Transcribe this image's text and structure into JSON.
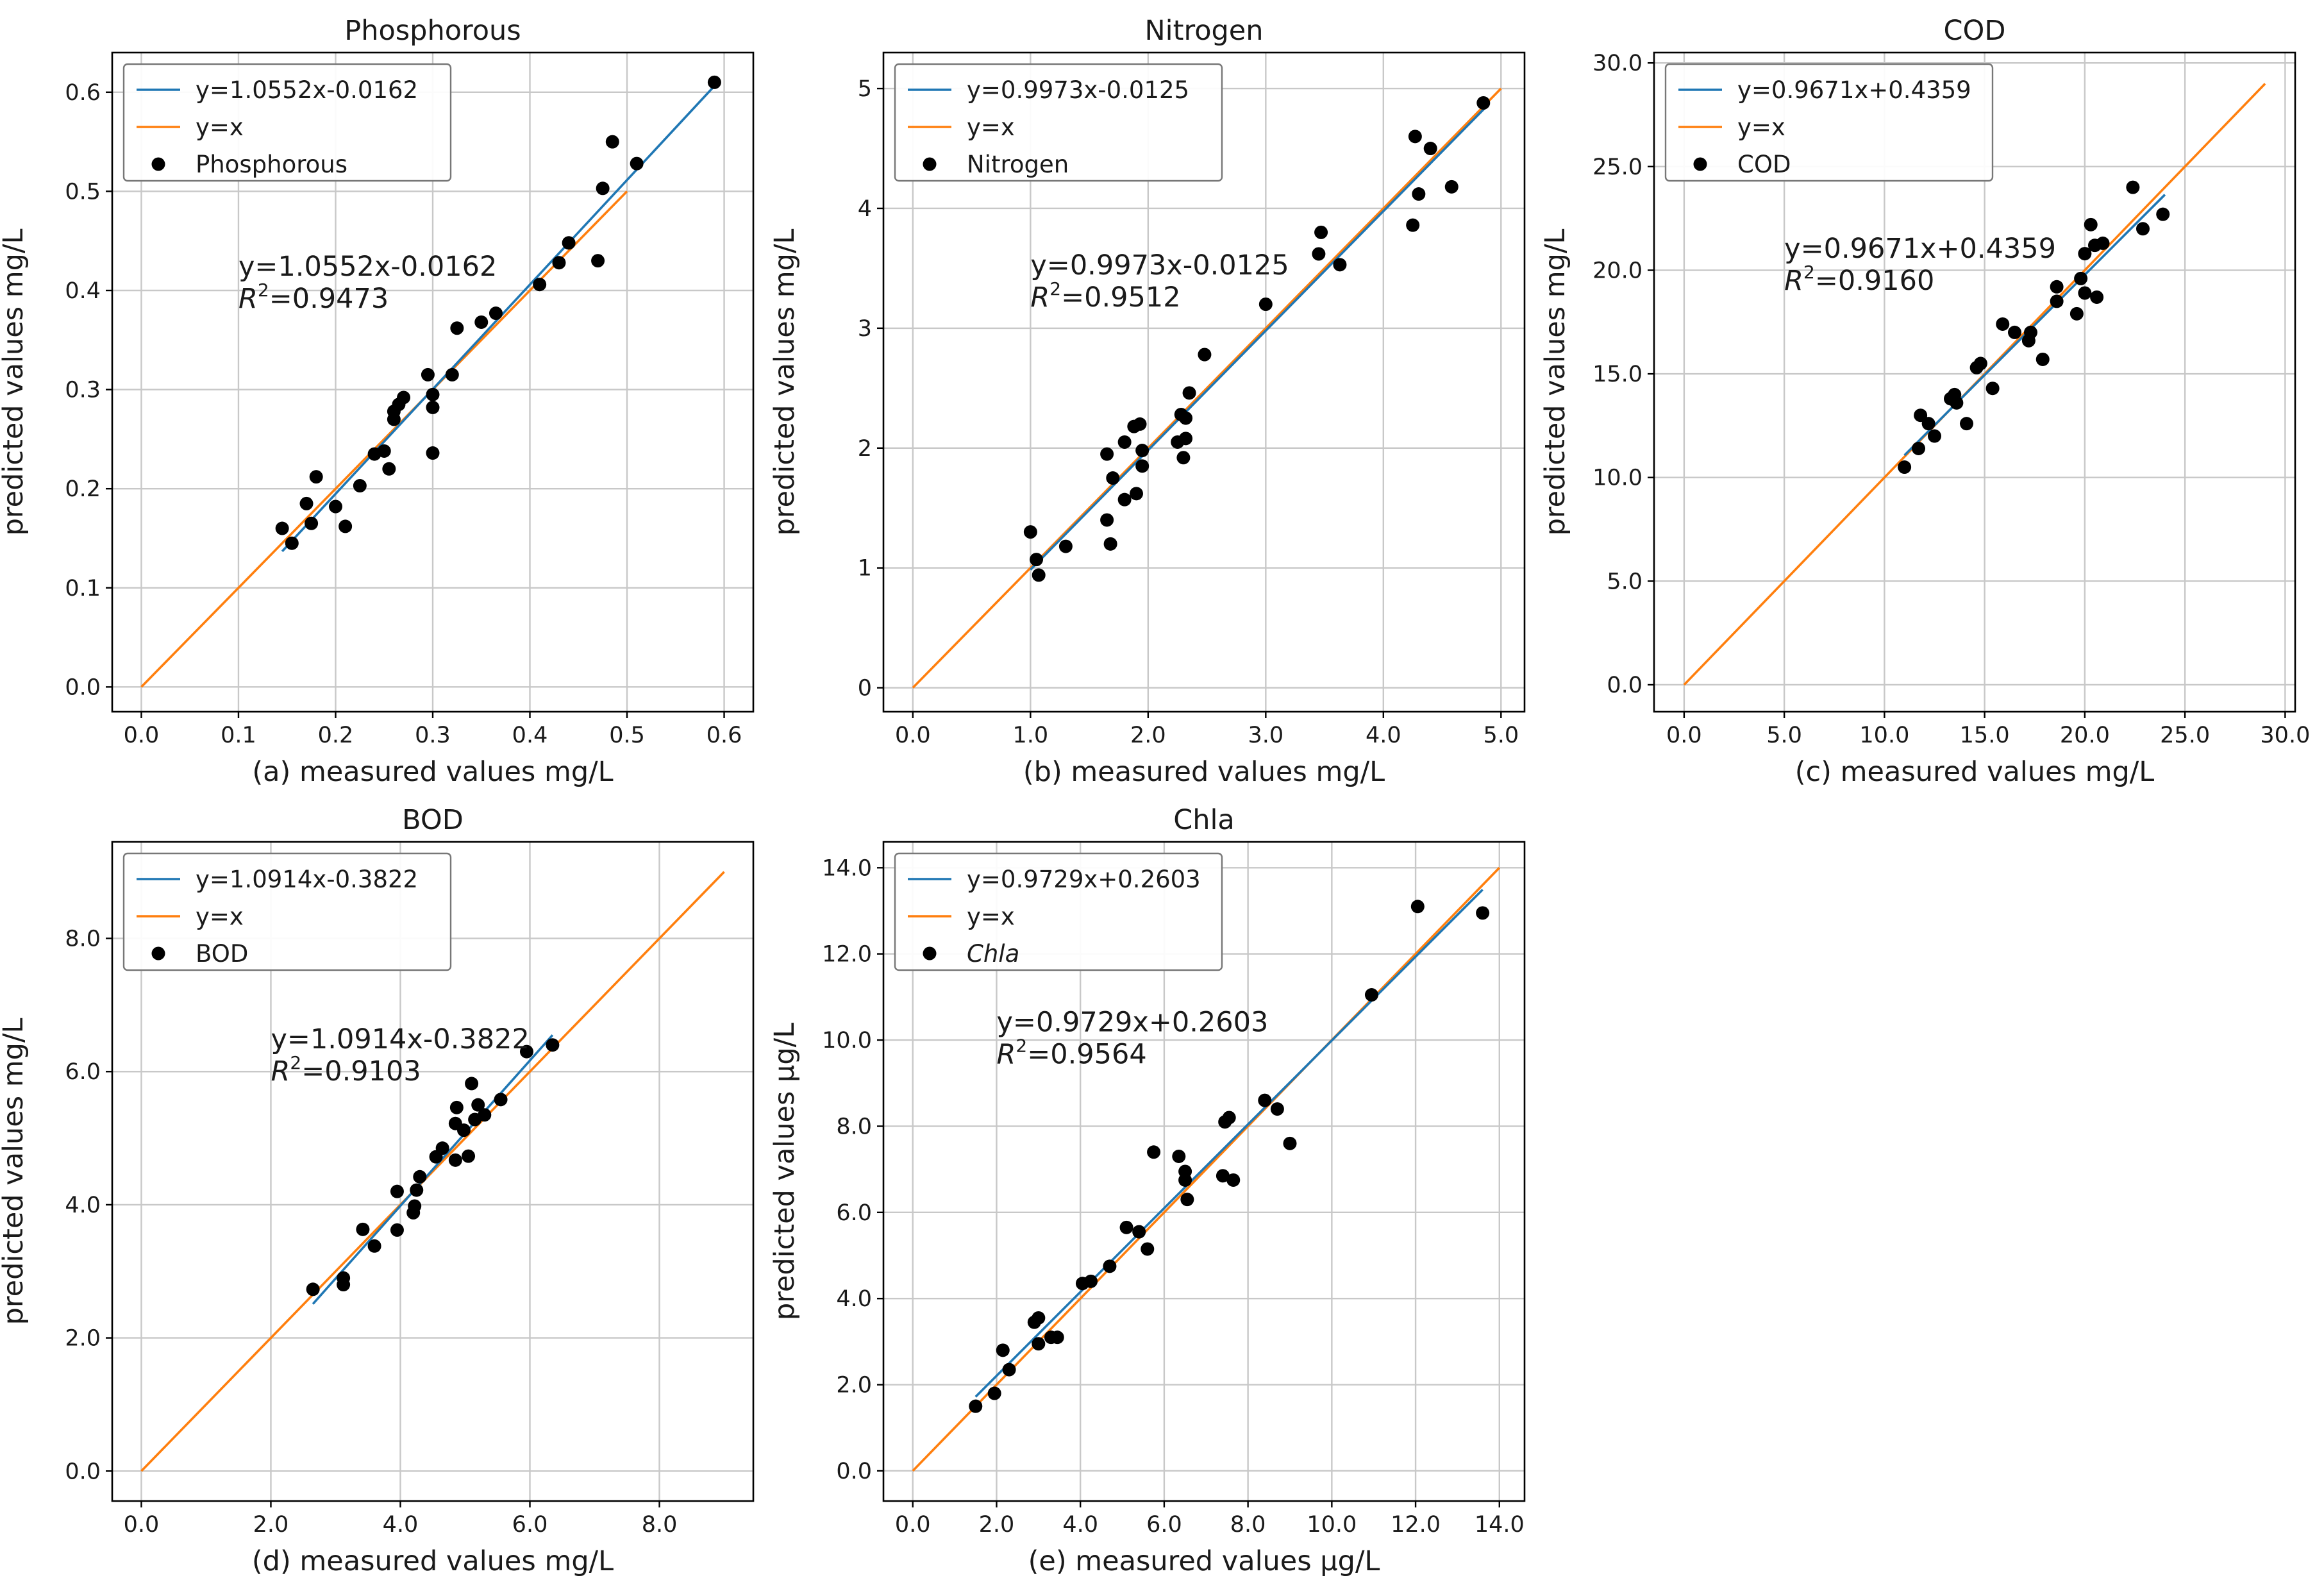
{
  "colors": {
    "fit": "#1f77b4",
    "identity": "#ff7f0e",
    "points": "#000000"
  },
  "chart_data": [
    {
      "type": "scatter",
      "title": "Phosphorous",
      "xlabel": "(a) measured values mg/L",
      "ylabel": "predicted values mg/L",
      "xlim": [
        -0.03,
        0.63
      ],
      "ylim": [
        -0.025,
        0.64
      ],
      "xticks": [
        0.0,
        0.1,
        0.2,
        0.3,
        0.4,
        0.5,
        0.6
      ],
      "yticks": [
        0.0,
        0.1,
        0.2,
        0.3,
        0.4,
        0.5,
        0.6
      ],
      "tick_labels_x": [
        "0.0",
        "0.1",
        "0.2",
        "0.3",
        "0.4",
        "0.5",
        "0.6"
      ],
      "tick_labels_y": [
        "0.0",
        "0.1",
        "0.2",
        "0.3",
        "0.4",
        "0.5",
        "0.6"
      ],
      "fit_line": {
        "slope": 1.0552,
        "intercept": -0.0162,
        "x_range": [
          0.145,
          0.59
        ]
      },
      "identity_line": {
        "x_range": [
          0.0,
          0.5
        ]
      },
      "legend": [
        "y=1.0552x-0.0162",
        "y=x",
        "Phosphorous"
      ],
      "legend_position": "upper-left",
      "annotation": {
        "equation": "y=1.0552x-0.0162",
        "r2_label": "R",
        "r2_value": "=0.9473",
        "x": 0.1,
        "y": 0.415
      },
      "points": [
        [
          0.145,
          0.16
        ],
        [
          0.155,
          0.145
        ],
        [
          0.17,
          0.185
        ],
        [
          0.175,
          0.165
        ],
        [
          0.18,
          0.212
        ],
        [
          0.2,
          0.182
        ],
        [
          0.21,
          0.162
        ],
        [
          0.225,
          0.203
        ],
        [
          0.24,
          0.235
        ],
        [
          0.25,
          0.238
        ],
        [
          0.255,
          0.22
        ],
        [
          0.26,
          0.27
        ],
        [
          0.26,
          0.278
        ],
        [
          0.265,
          0.285
        ],
        [
          0.27,
          0.292
        ],
        [
          0.295,
          0.315
        ],
        [
          0.3,
          0.282
        ],
        [
          0.3,
          0.295
        ],
        [
          0.3,
          0.236
        ],
        [
          0.32,
          0.315
        ],
        [
          0.325,
          0.362
        ],
        [
          0.35,
          0.368
        ],
        [
          0.365,
          0.377
        ],
        [
          0.41,
          0.406
        ],
        [
          0.43,
          0.428
        ],
        [
          0.44,
          0.448
        ],
        [
          0.47,
          0.43
        ],
        [
          0.475,
          0.503
        ],
        [
          0.485,
          0.55
        ],
        [
          0.51,
          0.528
        ],
        [
          0.59,
          0.61
        ]
      ]
    },
    {
      "type": "scatter",
      "title": "Nitrogen",
      "xlabel": "(b) measured values mg/L",
      "ylabel": "predicted values mg/L",
      "xlim": [
        -0.25,
        5.2
      ],
      "ylim": [
        -0.2,
        5.3
      ],
      "xticks": [
        0,
        1,
        2,
        3,
        4,
        5
      ],
      "yticks": [
        0,
        1,
        2,
        3,
        4,
        5
      ],
      "tick_labels_x": [
        "0.0",
        "1.0",
        "2.0",
        "3.0",
        "4.0",
        "5.0"
      ],
      "tick_labels_y": [
        "0",
        "1",
        "2",
        "3",
        "4",
        "5"
      ],
      "fit_line": {
        "slope": 0.9973,
        "intercept": -0.0125,
        "x_range": [
          1.0,
          4.9
        ]
      },
      "identity_line": {
        "x_range": [
          0.0,
          5.0
        ]
      },
      "legend": [
        "y=0.9973x-0.0125",
        "y=x",
        "Nitrogen"
      ],
      "legend_position": "upper-left",
      "annotation": {
        "equation": "y=0.9973x-0.0125",
        "r2_label": "R",
        "r2_value": "=0.9512",
        "x": 1.0,
        "y": 3.45
      },
      "points": [
        [
          1.0,
          1.3
        ],
        [
          1.05,
          1.07
        ],
        [
          1.07,
          0.94
        ],
        [
          1.3,
          1.18
        ],
        [
          1.65,
          1.95
        ],
        [
          1.65,
          1.4
        ],
        [
          1.68,
          1.2
        ],
        [
          1.7,
          1.75
        ],
        [
          1.8,
          2.05
        ],
        [
          1.8,
          1.57
        ],
        [
          1.88,
          2.18
        ],
        [
          1.9,
          1.62
        ],
        [
          1.93,
          2.2
        ],
        [
          1.95,
          1.98
        ],
        [
          1.95,
          1.85
        ],
        [
          2.25,
          2.05
        ],
        [
          2.28,
          2.28
        ],
        [
          2.3,
          1.92
        ],
        [
          2.32,
          2.08
        ],
        [
          2.32,
          2.25
        ],
        [
          2.35,
          2.46
        ],
        [
          2.48,
          2.78
        ],
        [
          3.0,
          3.2
        ],
        [
          3.45,
          3.62
        ],
        [
          3.47,
          3.8
        ],
        [
          3.63,
          3.53
        ],
        [
          4.25,
          3.86
        ],
        [
          4.27,
          4.6
        ],
        [
          4.3,
          4.12
        ],
        [
          4.4,
          4.5
        ],
        [
          4.58,
          4.18
        ],
        [
          4.85,
          4.88
        ]
      ]
    },
    {
      "type": "scatter",
      "title": "COD",
      "xlabel": "(c) measured values mg/L",
      "ylabel": "predicted values mg/L",
      "xlim": [
        -1.5,
        30.5
      ],
      "ylim": [
        -1.3,
        30.5
      ],
      "xticks": [
        0,
        5,
        10,
        15,
        20,
        25,
        30
      ],
      "yticks": [
        0,
        5,
        10,
        15,
        20,
        25,
        30
      ],
      "tick_labels_x": [
        "0.0",
        "5.0",
        "10.0",
        "15.0",
        "20.0",
        "25.0",
        "30.0"
      ],
      "tick_labels_y": [
        "0.0",
        "5.0",
        "10.0",
        "15.0",
        "20.0",
        "25.0",
        "30.0"
      ],
      "fit_line": {
        "slope": 0.9671,
        "intercept": 0.4359,
        "x_range": [
          11.0,
          24.0
        ]
      },
      "identity_line": {
        "x_range": [
          0.0,
          29.0
        ]
      },
      "legend": [
        "y=0.9671x+0.4359",
        "y=x",
        "COD"
      ],
      "legend_position": "upper-left",
      "annotation": {
        "equation": "y=0.9671x+0.4359",
        "r2_label": "R",
        "r2_value": "=0.9160",
        "x": 5.0,
        "y": 20.6
      },
      "points": [
        [
          11.0,
          10.5
        ],
        [
          11.7,
          11.4
        ],
        [
          11.8,
          13.0
        ],
        [
          12.2,
          12.6
        ],
        [
          12.5,
          12.0
        ],
        [
          13.3,
          13.8
        ],
        [
          13.5,
          14.0
        ],
        [
          13.6,
          13.6
        ],
        [
          14.1,
          12.6
        ],
        [
          14.6,
          15.3
        ],
        [
          14.8,
          15.5
        ],
        [
          15.4,
          14.3
        ],
        [
          15.9,
          17.4
        ],
        [
          16.5,
          17.0
        ],
        [
          17.2,
          16.6
        ],
        [
          17.3,
          17.0
        ],
        [
          17.9,
          15.7
        ],
        [
          18.6,
          18.5
        ],
        [
          18.6,
          19.2
        ],
        [
          19.6,
          17.9
        ],
        [
          19.8,
          19.6
        ],
        [
          20.0,
          20.8
        ],
        [
          20.0,
          18.9
        ],
        [
          20.3,
          22.2
        ],
        [
          20.5,
          21.2
        ],
        [
          20.6,
          18.7
        ],
        [
          20.9,
          21.3
        ],
        [
          22.4,
          24.0
        ],
        [
          22.9,
          22.0
        ],
        [
          23.9,
          22.7
        ]
      ]
    },
    {
      "type": "scatter",
      "title": "BOD",
      "xlabel": "(d) measured values mg/L",
      "ylabel": "predicted values mg/L",
      "xlim": [
        -0.45,
        9.45
      ],
      "ylim": [
        -0.45,
        9.45
      ],
      "xticks": [
        0,
        2,
        4,
        6,
        8
      ],
      "yticks": [
        0,
        2,
        4,
        6,
        8
      ],
      "tick_labels_x": [
        "0.0",
        "2.0",
        "4.0",
        "6.0",
        "8.0"
      ],
      "tick_labels_y": [
        "0.0",
        "2.0",
        "4.0",
        "6.0",
        "8.0"
      ],
      "fit_line": {
        "slope": 1.0914,
        "intercept": -0.3822,
        "x_range": [
          2.65,
          6.35
        ]
      },
      "identity_line": {
        "x_range": [
          0.0,
          9.0
        ]
      },
      "legend": [
        "y=1.0914x-0.3822",
        "y=x",
        "BOD"
      ],
      "legend_position": "upper-left",
      "annotation": {
        "equation": "y=1.0914x-0.3822",
        "r2_label": "R",
        "r2_value": "=0.9103",
        "x": 2.0,
        "y": 6.35
      },
      "points": [
        [
          2.65,
          2.73
        ],
        [
          3.12,
          2.8
        ],
        [
          3.12,
          2.9
        ],
        [
          3.42,
          3.63
        ],
        [
          3.6,
          3.38
        ],
        [
          3.95,
          3.62
        ],
        [
          3.95,
          4.2
        ],
        [
          4.2,
          3.88
        ],
        [
          4.22,
          3.98
        ],
        [
          4.25,
          4.22
        ],
        [
          4.3,
          4.42
        ],
        [
          4.55,
          4.72
        ],
        [
          4.65,
          4.85
        ],
        [
          4.85,
          4.67
        ],
        [
          4.85,
          5.22
        ],
        [
          4.87,
          5.46
        ],
        [
          4.98,
          5.12
        ],
        [
          5.05,
          4.73
        ],
        [
          5.1,
          5.82
        ],
        [
          5.15,
          5.28
        ],
        [
          5.2,
          5.5
        ],
        [
          5.3,
          5.35
        ],
        [
          5.55,
          5.58
        ],
        [
          5.95,
          6.3
        ],
        [
          6.35,
          6.4
        ]
      ]
    },
    {
      "type": "scatter",
      "title": "Chla",
      "xlabel": "(e) measured values μg/L",
      "ylabel": "predicted values μg/L",
      "xlim": [
        -0.7,
        14.6
      ],
      "ylim": [
        -0.7,
        14.6
      ],
      "xticks": [
        0,
        2,
        4,
        6,
        8,
        10,
        12,
        14
      ],
      "yticks": [
        0,
        2,
        4,
        6,
        8,
        10,
        12,
        14
      ],
      "tick_labels_x": [
        "0.0",
        "2.0",
        "4.0",
        "6.0",
        "8.0",
        "10.0",
        "12.0",
        "14.0"
      ],
      "tick_labels_y": [
        "0.0",
        "2.0",
        "4.0",
        "6.0",
        "8.0",
        "10.0",
        "12.0",
        "14.0"
      ],
      "fit_line": {
        "slope": 0.9729,
        "intercept": 0.2603,
        "x_range": [
          1.5,
          13.6
        ]
      },
      "identity_line": {
        "x_range": [
          0.0,
          14.0
        ]
      },
      "legend": [
        "y=0.9729x+0.2603",
        "y=x",
        "Chla"
      ],
      "legend_position": "upper-left",
      "annotation": {
        "equation": "y=0.9729x+0.2603",
        "r2_label": "R",
        "r2_value": "=0.9564",
        "x": 2.0,
        "y": 10.2
      },
      "points": [
        [
          1.5,
          1.5
        ],
        [
          1.95,
          1.8
        ],
        [
          2.15,
          2.8
        ],
        [
          2.3,
          2.35
        ],
        [
          2.9,
          3.45
        ],
        [
          3.0,
          3.55
        ],
        [
          3.0,
          2.95
        ],
        [
          3.3,
          3.1
        ],
        [
          3.45,
          3.1
        ],
        [
          4.05,
          4.35
        ],
        [
          4.25,
          4.4
        ],
        [
          4.7,
          4.75
        ],
        [
          5.1,
          5.65
        ],
        [
          5.4,
          5.55
        ],
        [
          5.6,
          5.15
        ],
        [
          5.75,
          7.4
        ],
        [
          6.35,
          7.3
        ],
        [
          6.5,
          6.95
        ],
        [
          6.5,
          6.75
        ],
        [
          6.55,
          6.3
        ],
        [
          7.4,
          6.85
        ],
        [
          7.45,
          8.1
        ],
        [
          7.55,
          8.2
        ],
        [
          7.65,
          6.75
        ],
        [
          8.4,
          8.6
        ],
        [
          8.7,
          8.4
        ],
        [
          9.0,
          7.6
        ],
        [
          10.95,
          11.05
        ],
        [
          12.05,
          13.1
        ],
        [
          13.6,
          12.95
        ]
      ]
    }
  ]
}
